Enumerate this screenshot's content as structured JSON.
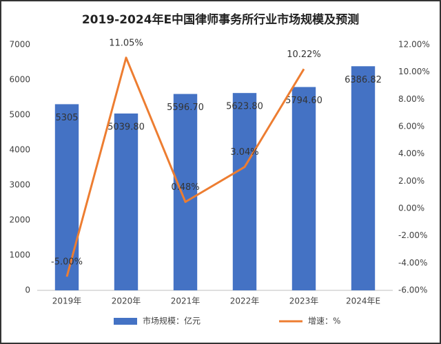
{
  "chart_data": {
    "type": "bar-line",
    "title": "2019-2024年E中国律师事务所行业市场规模及预测",
    "categories": [
      "2019年",
      "2020年",
      "2021年",
      "2022年",
      "2023年",
      "2024年E"
    ],
    "series": [
      {
        "name": "市场规模：亿元",
        "type": "bar",
        "color": "#4472c4",
        "values": [
          5305,
          5039.8,
          5596.7,
          5623.8,
          5794.6,
          6386.82
        ],
        "value_labels": [
          "5305",
          "5039.80",
          "5596.70",
          "5623.80",
          "5794.60",
          "6386.82"
        ]
      },
      {
        "name": "增速：%",
        "type": "line",
        "axis": "y2",
        "color": "#ed7d31",
        "values": [
          -5,
          11.05,
          0.48,
          3.04,
          10.22,
          null
        ],
        "value_labels": [
          "-5.00%",
          "11.05%",
          "0.48%",
          "3.04%",
          "10.22%",
          null
        ]
      }
    ],
    "ylim": [
      0,
      7000
    ],
    "yticks": [
      0,
      1000,
      2000,
      3000,
      4000,
      5000,
      6000,
      7000
    ],
    "y2lim": [
      -6,
      12
    ],
    "y2ticks": [
      {
        "value": -6,
        "label": "-6.00%"
      },
      {
        "value": -4,
        "label": "-4.00%"
      },
      {
        "value": -2,
        "label": "-2.00%"
      },
      {
        "value": 0,
        "label": "0.00%"
      },
      {
        "value": 2,
        "label": "2.00%"
      },
      {
        "value": 4,
        "label": "4.00%"
      },
      {
        "value": 6,
        "label": "6.00%"
      },
      {
        "value": 8,
        "label": "8.00%"
      },
      {
        "value": 10,
        "label": "10.00%"
      },
      {
        "value": 12,
        "label": "12.00%"
      }
    ],
    "grid": false
  }
}
